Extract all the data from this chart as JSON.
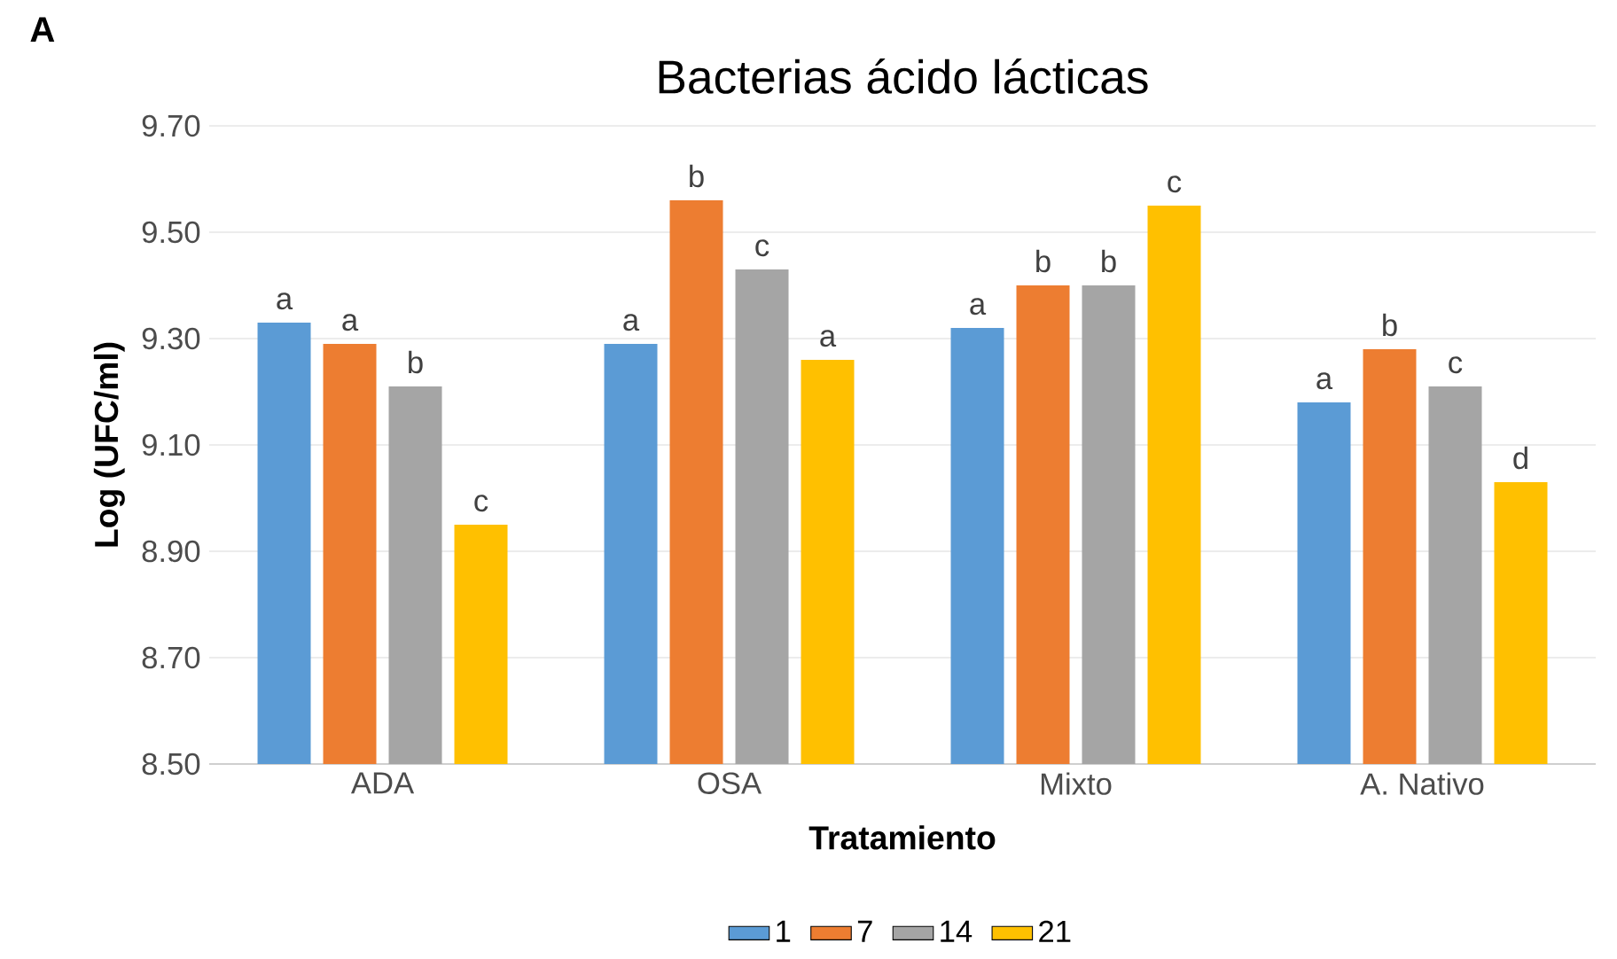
{
  "chart_data": {
    "type": "bar",
    "title": "Bacterias ácido lácticas",
    "xlabel": "Tratamiento",
    "ylabel": "Log (UFC/ml)",
    "annotations": [
      "A"
    ],
    "categories": [
      "ADA",
      "OSA",
      "Mixto",
      "A. Nativo"
    ],
    "series": [
      {
        "name": "1",
        "color": "#5b9bd5",
        "values": [
          9.33,
          9.29,
          9.32,
          9.18
        ],
        "value_labels": [
          "a",
          "a",
          "a",
          "a"
        ]
      },
      {
        "name": "7",
        "color": "#ed7d31",
        "values": [
          9.29,
          9.56,
          9.4,
          9.28
        ],
        "value_labels": [
          "a",
          "b",
          "b",
          "b"
        ]
      },
      {
        "name": "14",
        "color": "#a5a5a5",
        "values": [
          9.21,
          9.43,
          9.4,
          9.21
        ],
        "value_labels": [
          "b",
          "c",
          "b",
          "c"
        ]
      },
      {
        "name": "21",
        "color": "#ffc000",
        "values": [
          8.95,
          9.26,
          9.55,
          9.03
        ],
        "value_labels": [
          "c",
          "a",
          "c",
          "d"
        ]
      }
    ],
    "ylim": [
      8.5,
      9.7
    ],
    "yticks": [
      {
        "value": 8.5,
        "label": "8.50"
      },
      {
        "value": 8.7,
        "label": "8.70"
      },
      {
        "value": 8.9,
        "label": "8.90"
      },
      {
        "value": 9.1,
        "label": "9.10"
      },
      {
        "value": 9.3,
        "label": "9.30"
      },
      {
        "value": 9.5,
        "label": "9.50"
      },
      {
        "value": 9.7,
        "label": "9.70"
      }
    ],
    "grid": "y",
    "legend": "bottom"
  }
}
